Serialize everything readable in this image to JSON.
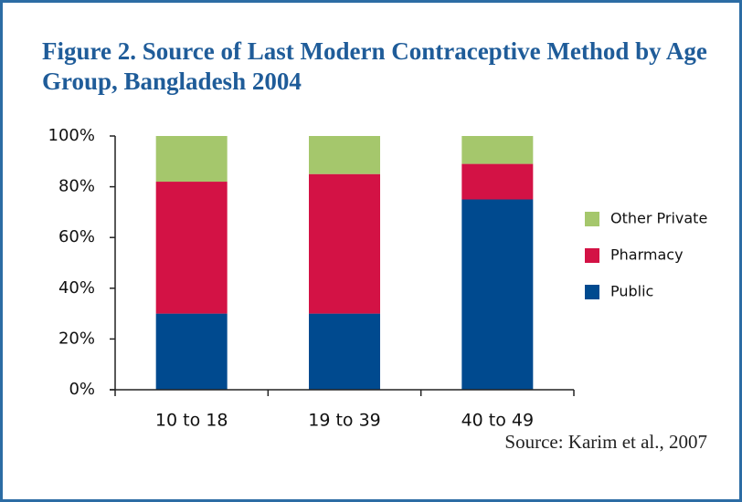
{
  "chart_data": {
    "type": "stacked_bar",
    "title": "Figure 2. Source of Last Modern Contraceptive Method by Age Group, Bangladesh 2004",
    "categories": [
      "10 to 18",
      "19 to 39",
      "40 to 49"
    ],
    "series": [
      {
        "name": "Public",
        "color": "#004a8f",
        "values": [
          30,
          30,
          75
        ]
      },
      {
        "name": "Pharmacy",
        "color": "#d31245",
        "values": [
          52,
          55,
          14
        ]
      },
      {
        "name": "Other Private",
        "color": "#a5c76c",
        "values": [
          18,
          15,
          11
        ]
      }
    ],
    "ylim": [
      0,
      100
    ],
    "yticks": [
      {
        "value": 0,
        "label": "0%"
      },
      {
        "value": 20,
        "label": "20%"
      },
      {
        "value": 40,
        "label": "40%"
      },
      {
        "value": 60,
        "label": "60%"
      },
      {
        "value": 80,
        "label": "80%"
      },
      {
        "value": 100,
        "label": "100%"
      }
    ],
    "legend": "right",
    "source": "Source: Karim et al., 2007"
  }
}
